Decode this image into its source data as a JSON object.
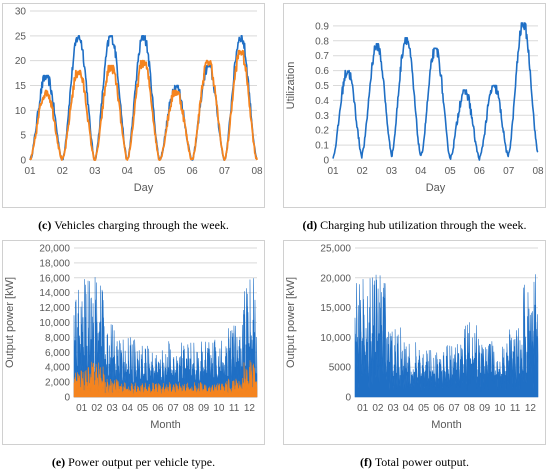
{
  "colors": {
    "blue": "#1F6FC5",
    "orange": "#F5841F",
    "grid": "#D9D9D9",
    "axis_text": "#595959"
  },
  "captions": [
    {
      "letter": "(c)",
      "text": "Vehicles charging through the week."
    },
    {
      "letter": "(d)",
      "text": "Charging hub utilization through the week."
    },
    {
      "letter": "(e)",
      "text": "Power output per vehicle type."
    },
    {
      "letter": "(f)",
      "text": "Total power output."
    }
  ],
  "chart_data": [
    {
      "type": "line",
      "xlabel": "Day",
      "ylabel": "",
      "ylim": [
        0,
        30
      ],
      "yticks": [
        "0",
        "5",
        "10",
        "15",
        "20",
        "25",
        "30"
      ],
      "xticks": [
        "01",
        "02",
        "03",
        "04",
        "05",
        "06",
        "07",
        "08"
      ],
      "grid": true,
      "series": [
        {
          "color": "#1F6FC5",
          "peaks": [
            17,
            25,
            25,
            25,
            15,
            19,
            25
          ],
          "troughs": [
            0,
            0,
            0,
            0,
            0,
            0,
            0
          ]
        },
        {
          "color": "#F5841F",
          "peaks": [
            14,
            18,
            19,
            20,
            14,
            20,
            22
          ],
          "troughs": [
            0,
            0,
            0,
            0,
            0,
            0,
            0
          ]
        }
      ]
    },
    {
      "type": "line",
      "xlabel": "Day",
      "ylabel": "Utilization",
      "ylim": [
        0,
        1.0
      ],
      "yticks": [
        "0",
        "0.1",
        "0.2",
        "0.3",
        "0.4",
        "0.5",
        "0.6",
        "0.7",
        "0.8",
        "0.9"
      ],
      "xticks": [
        "01",
        "02",
        "03",
        "04",
        "05",
        "06",
        "07",
        "08"
      ],
      "grid": true,
      "series": [
        {
          "color": "#1F6FC5",
          "peaks": [
            0.6,
            0.78,
            0.82,
            0.75,
            0.47,
            0.5,
            0.92
          ],
          "troughs": [
            0.02,
            0.05,
            0.03,
            0.02,
            0.01,
            0.01,
            0.05
          ]
        }
      ]
    },
    {
      "type": "area",
      "xlabel": "Month",
      "ylabel": "Output power  [kW]",
      "ylim": [
        0,
        20000
      ],
      "yticks": [
        "0",
        "2,000",
        "4,000",
        "6,000",
        "8,000",
        "10,000",
        "12,000",
        "14,000",
        "16,000",
        "18,000",
        "20,000"
      ],
      "xticks": [
        "01",
        "02",
        "03",
        "04",
        "05",
        "06",
        "07",
        "08",
        "09",
        "10",
        "11",
        "12"
      ],
      "grid": true,
      "series": [
        {
          "color": "#1F6FC5",
          "monthly_peak": [
            16000,
            17000,
            10000,
            8000,
            7000,
            7000,
            7500,
            8000,
            7500,
            8000,
            10000,
            16000
          ]
        },
        {
          "color": "#F5841F",
          "monthly_peak": [
            4000,
            5000,
            2500,
            2000,
            2000,
            2000,
            2000,
            2000,
            2000,
            2000,
            2500,
            5000
          ]
        }
      ]
    },
    {
      "type": "area",
      "xlabel": "Month",
      "ylabel": "Output power  [kW]",
      "ylim": [
        0,
        25000
      ],
      "yticks": [
        "0",
        "5000",
        "10,000",
        "15,000",
        "20,000",
        "25,000"
      ],
      "xticks": [
        "01",
        "02",
        "03",
        "04",
        "05",
        "06",
        "07",
        "08",
        "09",
        "10",
        "11",
        "12"
      ],
      "grid": true,
      "series": [
        {
          "color": "#1F6FC5",
          "monthly_peak": [
            20000,
            21000,
            12000,
            10000,
            8000,
            8000,
            9000,
            13000,
            10000,
            9000,
            12000,
            21000
          ]
        }
      ]
    }
  ]
}
